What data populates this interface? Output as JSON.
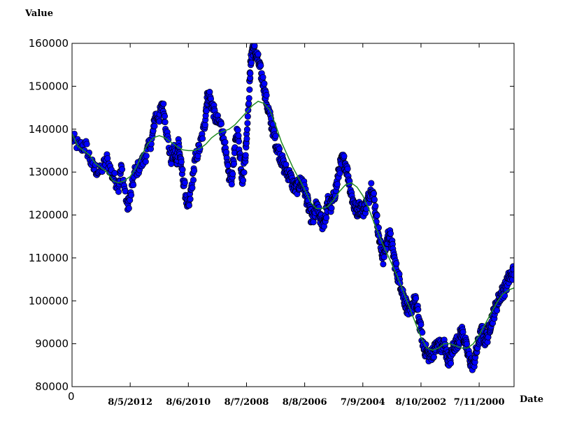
{
  "chart_data": {
    "type": "scatter",
    "ylabel": "Value",
    "xlabel": "Date",
    "x_origin_label": "0",
    "ylim": [
      80000,
      160000
    ],
    "xlim": [
      0,
      7600
    ],
    "y_ticks": [
      80000,
      90000,
      100000,
      110000,
      120000,
      130000,
      140000,
      150000,
      160000
    ],
    "y_tick_labels": [
      "80000",
      "90000",
      "100000",
      "110000",
      "120000",
      "130000",
      "140000",
      "150000",
      "160000"
    ],
    "x_tick_labels": [
      {
        "label": "8/5/2012",
        "x": 1000
      },
      {
        "label": "8/6/2010",
        "x": 2000
      },
      {
        "label": "8/7/2008",
        "x": 3000
      },
      {
        "label": "8/8/2006",
        "x": 4000
      },
      {
        "label": "7/9/2004",
        "x": 5000
      },
      {
        "label": "8/10/2002",
        "x": 6000
      },
      {
        "label": "7/11/2000",
        "x": 7000
      }
    ],
    "grid": false,
    "scatter_color": "#0000ff",
    "scatter_edge_color": "#000000",
    "line_color": "#228b22",
    "scatter_anchor_points": [
      [
        0,
        138000
      ],
      [
        120,
        136000
      ],
      [
        240,
        136000
      ],
      [
        360,
        131000
      ],
      [
        480,
        130000
      ],
      [
        600,
        133000
      ],
      [
        700,
        129000
      ],
      [
        800,
        127000
      ],
      [
        850,
        131000
      ],
      [
        950,
        122000
      ],
      [
        1000,
        124000
      ],
      [
        1080,
        130000
      ],
      [
        1200,
        132000
      ],
      [
        1300,
        135000
      ],
      [
        1380,
        138000
      ],
      [
        1430,
        143000
      ],
      [
        1500,
        143000
      ],
      [
        1560,
        146000
      ],
      [
        1620,
        140000
      ],
      [
        1700,
        133000
      ],
      [
        1760,
        135000
      ],
      [
        1800,
        132000
      ],
      [
        1830,
        137000
      ],
      [
        1880,
        131000
      ],
      [
        1940,
        126000
      ],
      [
        2000,
        121000
      ],
      [
        2060,
        127000
      ],
      [
        2120,
        133000
      ],
      [
        2200,
        136000
      ],
      [
        2280,
        141000
      ],
      [
        2320,
        147000
      ],
      [
        2360,
        148000
      ],
      [
        2420,
        145000
      ],
      [
        2480,
        142000
      ],
      [
        2560,
        141000
      ],
      [
        2620,
        137000
      ],
      [
        2680,
        130000
      ],
      [
        2740,
        128000
      ],
      [
        2790,
        134000
      ],
      [
        2840,
        140000
      ],
      [
        2890,
        134000
      ],
      [
        2930,
        128000
      ],
      [
        2980,
        134000
      ],
      [
        3000,
        138000
      ],
      [
        3050,
        150000
      ],
      [
        3070,
        155000
      ],
      [
        3100,
        159000
      ],
      [
        3150,
        158000
      ],
      [
        3200,
        156000
      ],
      [
        3250,
        153000
      ],
      [
        3300,
        150000
      ],
      [
        3350,
        146000
      ],
      [
        3400,
        143000
      ],
      [
        3450,
        140000
      ],
      [
        3500,
        137000
      ],
      [
        3550,
        135000
      ],
      [
        3600,
        133000
      ],
      [
        3650,
        131000
      ],
      [
        3700,
        130000
      ],
      [
        3750,
        129000
      ],
      [
        3800,
        127000
      ],
      [
        3850,
        126000
      ],
      [
        3900,
        127000
      ],
      [
        3950,
        128000
      ],
      [
        4000,
        126000
      ],
      [
        4050,
        123000
      ],
      [
        4100,
        120000
      ],
      [
        4150,
        119000
      ],
      [
        4200,
        122000
      ],
      [
        4250,
        120000
      ],
      [
        4300,
        118000
      ],
      [
        4350,
        119000
      ],
      [
        4400,
        123000
      ],
      [
        4450,
        122000
      ],
      [
        4500,
        124000
      ],
      [
        4550,
        127000
      ],
      [
        4600,
        131000
      ],
      [
        4650,
        133000
      ],
      [
        4700,
        132000
      ],
      [
        4750,
        129000
      ],
      [
        4800,
        125000
      ],
      [
        4850,
        122000
      ],
      [
        4900,
        121000
      ],
      [
        4950,
        122000
      ],
      [
        5000,
        121000
      ],
      [
        5050,
        122000
      ],
      [
        5100,
        124000
      ],
      [
        5150,
        127000
      ],
      [
        5200,
        123000
      ],
      [
        5250,
        118000
      ],
      [
        5300,
        113000
      ],
      [
        5350,
        110000
      ],
      [
        5400,
        113000
      ],
      [
        5450,
        116000
      ],
      [
        5500,
        113000
      ],
      [
        5550,
        109000
      ],
      [
        5600,
        106000
      ],
      [
        5650,
        104000
      ],
      [
        5700,
        101000
      ],
      [
        5750,
        99000
      ],
      [
        5800,
        97000
      ],
      [
        5850,
        99000
      ],
      [
        5900,
        100000
      ],
      [
        5950,
        97000
      ],
      [
        6000,
        93000
      ],
      [
        6050,
        89000
      ],
      [
        6100,
        88000
      ],
      [
        6150,
        87000
      ],
      [
        6200,
        88000
      ],
      [
        6250,
        89000
      ],
      [
        6300,
        90000
      ],
      [
        6350,
        89000
      ],
      [
        6400,
        90000
      ],
      [
        6450,
        87000
      ],
      [
        6500,
        86000
      ],
      [
        6550,
        89000
      ],
      [
        6600,
        90000
      ],
      [
        6650,
        91000
      ],
      [
        6700,
        93000
      ],
      [
        6750,
        91000
      ],
      [
        6800,
        88000
      ],
      [
        6850,
        86000
      ],
      [
        6900,
        85000
      ],
      [
        6950,
        88000
      ],
      [
        7000,
        91000
      ],
      [
        7050,
        93000
      ],
      [
        7100,
        91000
      ],
      [
        7150,
        92000
      ],
      [
        7200,
        95000
      ],
      [
        7250,
        97000
      ],
      [
        7300,
        99000
      ],
      [
        7350,
        101000
      ],
      [
        7400,
        102000
      ],
      [
        7450,
        103000
      ],
      [
        7500,
        105000
      ],
      [
        7550,
        106000
      ],
      [
        7600,
        107000
      ]
    ],
    "trend_points": [
      [
        0,
        139000
      ],
      [
        100,
        136000
      ],
      [
        200,
        135000
      ],
      [
        300,
        134000
      ],
      [
        400,
        132000
      ],
      [
        500,
        131000
      ],
      [
        600,
        130000
      ],
      [
        700,
        128000
      ],
      [
        800,
        127500
      ],
      [
        900,
        128000
      ],
      [
        1000,
        129000
      ],
      [
        1100,
        131000
      ],
      [
        1200,
        134000
      ],
      [
        1300,
        136500
      ],
      [
        1400,
        138000
      ],
      [
        1500,
        138500
      ],
      [
        1600,
        138000
      ],
      [
        1700,
        137000
      ],
      [
        1800,
        136000
      ],
      [
        1900,
        135200
      ],
      [
        2000,
        135000
      ],
      [
        2100,
        135000
      ],
      [
        2200,
        135500
      ],
      [
        2300,
        136500
      ],
      [
        2400,
        138000
      ],
      [
        2500,
        139000
      ],
      [
        2600,
        139500
      ],
      [
        2700,
        140000
      ],
      [
        2800,
        141000
      ],
      [
        2900,
        142500
      ],
      [
        3000,
        144000
      ],
      [
        3100,
        145500
      ],
      [
        3200,
        146500
      ],
      [
        3300,
        146000
      ],
      [
        3400,
        144500
      ],
      [
        3500,
        141000
      ],
      [
        3600,
        137000
      ],
      [
        3700,
        134000
      ],
      [
        3800,
        131000
      ],
      [
        3900,
        128500
      ],
      [
        4000,
        126000
      ],
      [
        4100,
        123000
      ],
      [
        4200,
        121500
      ],
      [
        4300,
        121500
      ],
      [
        4400,
        122000
      ],
      [
        4500,
        123500
      ],
      [
        4600,
        125500
      ],
      [
        4700,
        127000
      ],
      [
        4800,
        127500
      ],
      [
        4900,
        126500
      ],
      [
        5000,
        124500
      ],
      [
        5100,
        121500
      ],
      [
        5200,
        118000
      ],
      [
        5300,
        114500
      ],
      [
        5400,
        111500
      ],
      [
        5500,
        108500
      ],
      [
        5600,
        105500
      ],
      [
        5700,
        102000
      ],
      [
        5800,
        98500
      ],
      [
        5900,
        95000
      ],
      [
        6000,
        91500
      ],
      [
        6100,
        89000
      ],
      [
        6200,
        88500
      ],
      [
        6300,
        89000
      ],
      [
        6400,
        90000
      ],
      [
        6500,
        90000
      ],
      [
        6600,
        89500
      ],
      [
        6700,
        89000
      ],
      [
        6800,
        89000
      ],
      [
        6900,
        90000
      ],
      [
        7000,
        92000
      ],
      [
        7100,
        94500
      ],
      [
        7200,
        97000
      ],
      [
        7300,
        99500
      ],
      [
        7400,
        101500
      ],
      [
        7500,
        102500
      ],
      [
        7600,
        103000
      ]
    ]
  }
}
